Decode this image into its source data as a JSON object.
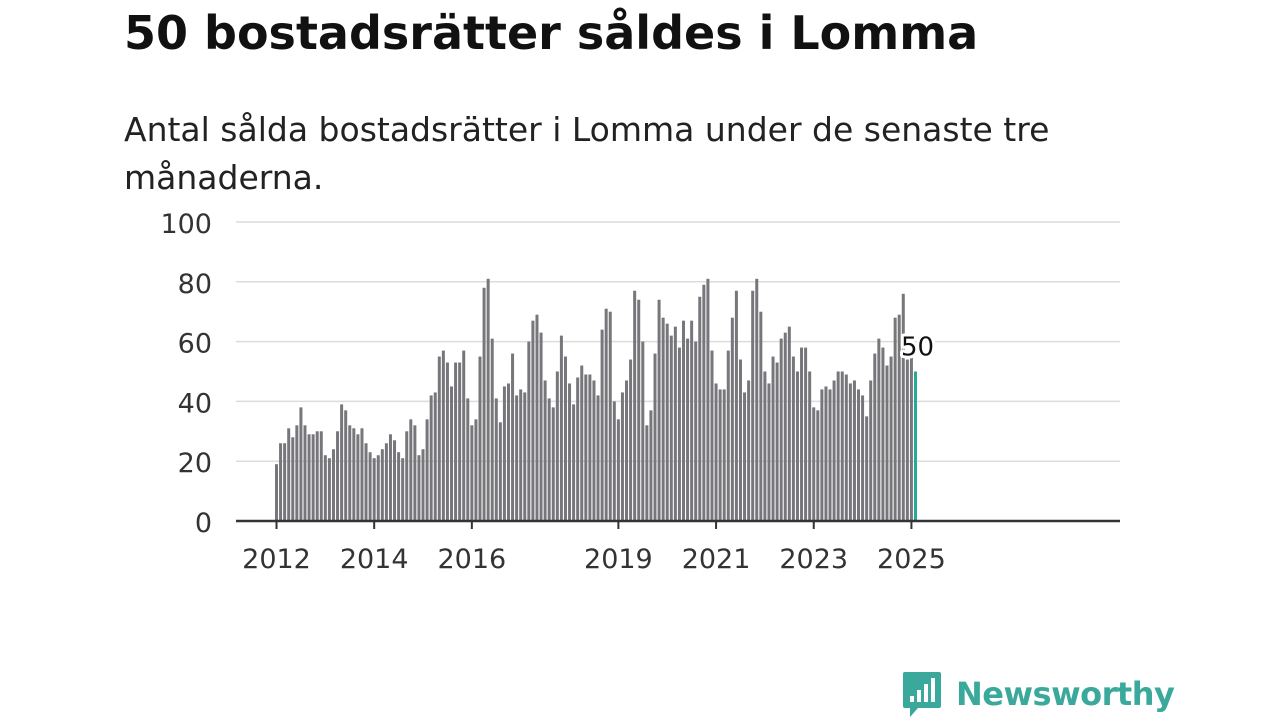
{
  "title": "50 bostadsrätter såldes i Lomma",
  "subtitle": "Antal sålda bostadsrätter i Lomma under de senaste tre månaderna.",
  "logo_text": "Newsworthy",
  "colors": {
    "bar": "#76767b",
    "highlight": "#25a99a",
    "grid": "#dcdcdc",
    "axis": "#333333",
    "logo": "#3aa89a"
  },
  "chart_data": {
    "type": "bar",
    "title": "50 bostadsrätter såldes i Lomma",
    "subtitle": "Antal sålda bostadsrätter i Lomma under de senaste tre månaderna.",
    "xlabel": "",
    "ylabel": "",
    "ylim": [
      0,
      100
    ],
    "yticks": [
      0,
      20,
      40,
      60,
      80,
      100
    ],
    "xtick_labels": [
      "2012",
      "2014",
      "2016",
      "2019",
      "2021",
      "2023",
      "2025"
    ],
    "grid": true,
    "start": "2012-01",
    "highlight_label": "50",
    "values": [
      19,
      26,
      26,
      31,
      28,
      32,
      38,
      32,
      29,
      29,
      30,
      30,
      22,
      21,
      24,
      30,
      39,
      37,
      32,
      31,
      29,
      31,
      26,
      23,
      21,
      22,
      24,
      26,
      29,
      27,
      23,
      21,
      30,
      34,
      32,
      22,
      24,
      34,
      42,
      43,
      55,
      57,
      53,
      45,
      53,
      53,
      57,
      41,
      32,
      34,
      55,
      78,
      81,
      61,
      41,
      33,
      45,
      46,
      56,
      42,
      44,
      43,
      60,
      67,
      69,
      63,
      47,
      41,
      38,
      50,
      62,
      55,
      46,
      39,
      48,
      52,
      49,
      49,
      47,
      42,
      64,
      71,
      70,
      40,
      34,
      43,
      47,
      54,
      77,
      74,
      60,
      32,
      37,
      56,
      74,
      68,
      66,
      62,
      65,
      58,
      67,
      61,
      67,
      60,
      75,
      79,
      81,
      57,
      46,
      44,
      44,
      57,
      68,
      77,
      54,
      43,
      47,
      77,
      81,
      70,
      50,
      46,
      55,
      53,
      61,
      63,
      65,
      55,
      50,
      58,
      58,
      50,
      38,
      37,
      44,
      45,
      44,
      47,
      50,
      50,
      49,
      46,
      47,
      44,
      42,
      35,
      47,
      56,
      61,
      58,
      52,
      55,
      68,
      69,
      76,
      54,
      55,
      50
    ]
  }
}
